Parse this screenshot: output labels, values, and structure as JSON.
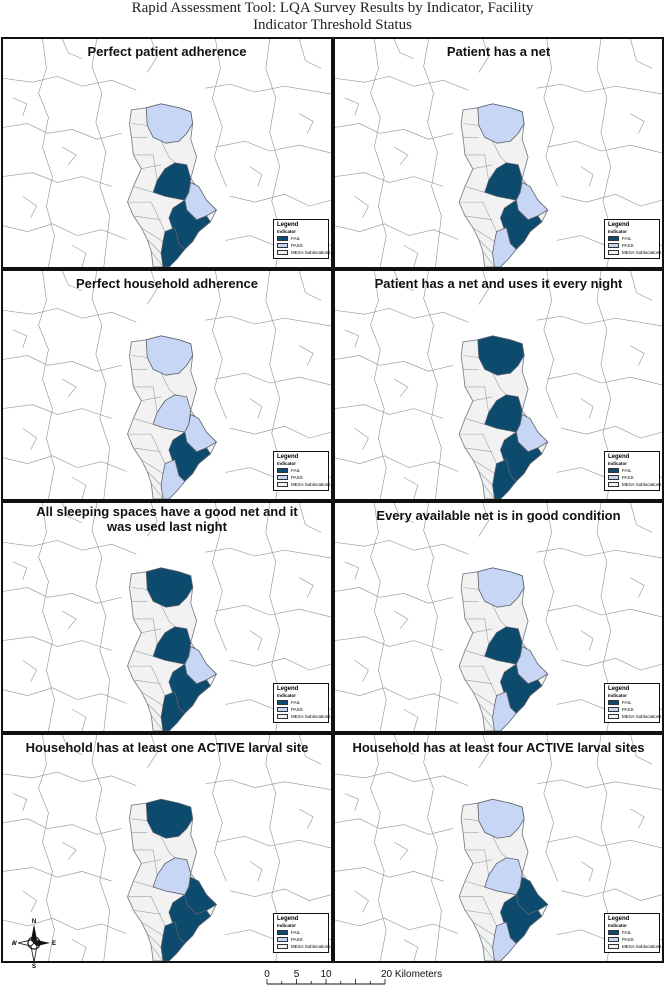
{
  "title": {
    "line1": "Rapid Assessment Tool: LQA Survey Results by Indicator, Facility",
    "line2": "Indicator Threshold Status"
  },
  "colors": {
    "fail": "#0c4a6e",
    "pass": "#c7d6f5",
    "subloc": "#f2f2f2",
    "boundary": "#9aa0a6"
  },
  "legend": {
    "title": "Legend",
    "subtitle": "Indicator",
    "fail_label": "FAIL",
    "pass_label": "PASS",
    "subloc_label": "MESA Sublocations"
  },
  "panels": [
    {
      "title": "Perfect patient adherence",
      "north": "pass",
      "middle": "fail",
      "east": "pass",
      "south": "fail",
      "southwest": "fail"
    },
    {
      "title": "Patient has a net",
      "north": "pass",
      "middle": "fail",
      "east": "pass",
      "south": "fail",
      "southwest": "pass"
    },
    {
      "title": "Perfect household adherence",
      "north": "pass",
      "middle": "pass",
      "east": "pass",
      "south": "fail",
      "southwest": "pass"
    },
    {
      "title": "Patient has a net and uses it every night",
      "north": "fail",
      "middle": "fail",
      "east": "pass",
      "south": "fail",
      "southwest": "fail"
    },
    {
      "title": "All sleeping spaces have a good net and it was used last night",
      "north": "fail",
      "middle": "fail",
      "east": "pass",
      "south": "fail",
      "southwest": "fail"
    },
    {
      "title": "Every available net is in good condition",
      "north": "pass",
      "middle": "fail",
      "east": "pass",
      "south": "fail",
      "southwest": "pass"
    },
    {
      "title": "Household has at least one ACTIVE larval site",
      "north": "fail",
      "middle": "pass",
      "east": "fail",
      "south": "fail",
      "southwest": "fail"
    },
    {
      "title": "Household has at least four ACTIVE larval sites",
      "north": "pass",
      "middle": "pass",
      "east": "fail",
      "south": "fail",
      "southwest": "pass"
    }
  ],
  "compass": {
    "n": "N",
    "s": "S",
    "e": "E",
    "w": "W"
  },
  "scale": {
    "ticks": [
      {
        "label": "0",
        "km": 0
      },
      {
        "label": "5",
        "km": 5
      },
      {
        "label": "10",
        "km": 10
      },
      {
        "label": "20 Kilometers",
        "km": 20
      }
    ]
  }
}
